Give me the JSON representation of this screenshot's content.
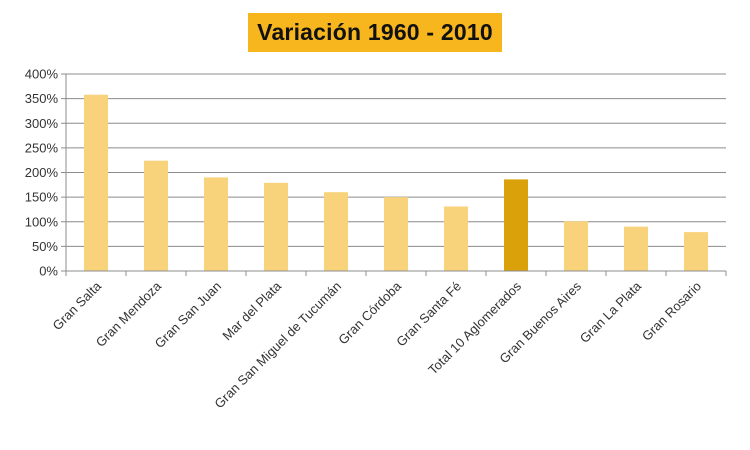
{
  "chart_data": {
    "type": "bar",
    "title": "Variación 1960 - 2010",
    "xlabel": "",
    "ylabel": "",
    "categories": [
      "Gran Salta",
      "Gran Mendoza",
      "Gran San Juan",
      "Mar del Plata",
      "Gran San Miguel de Tucumán",
      "Gran Córdoba",
      "Gran Santa Fé",
      "Total 10 Aglomerados",
      "Gran Buenos Aires",
      "Gran La Plata",
      "Gran Rosario"
    ],
    "values": [
      358,
      224,
      190,
      179,
      160,
      150,
      131,
      186,
      101,
      90,
      79
    ],
    "highlight_index": 7,
    "ylim": [
      0,
      400
    ],
    "yticks": [
      "0%",
      "50%",
      "100%",
      "150%",
      "200%",
      "250%",
      "300%",
      "350%",
      "400%"
    ],
    "grid": true,
    "legend": "none",
    "colors": {
      "bar": "#f9d27c",
      "bar_highlight": "#daa10a",
      "title_background": "#f7b51e",
      "grid": "#8c8c8c",
      "axis": "#8c8c8c",
      "text": "#333333"
    }
  }
}
